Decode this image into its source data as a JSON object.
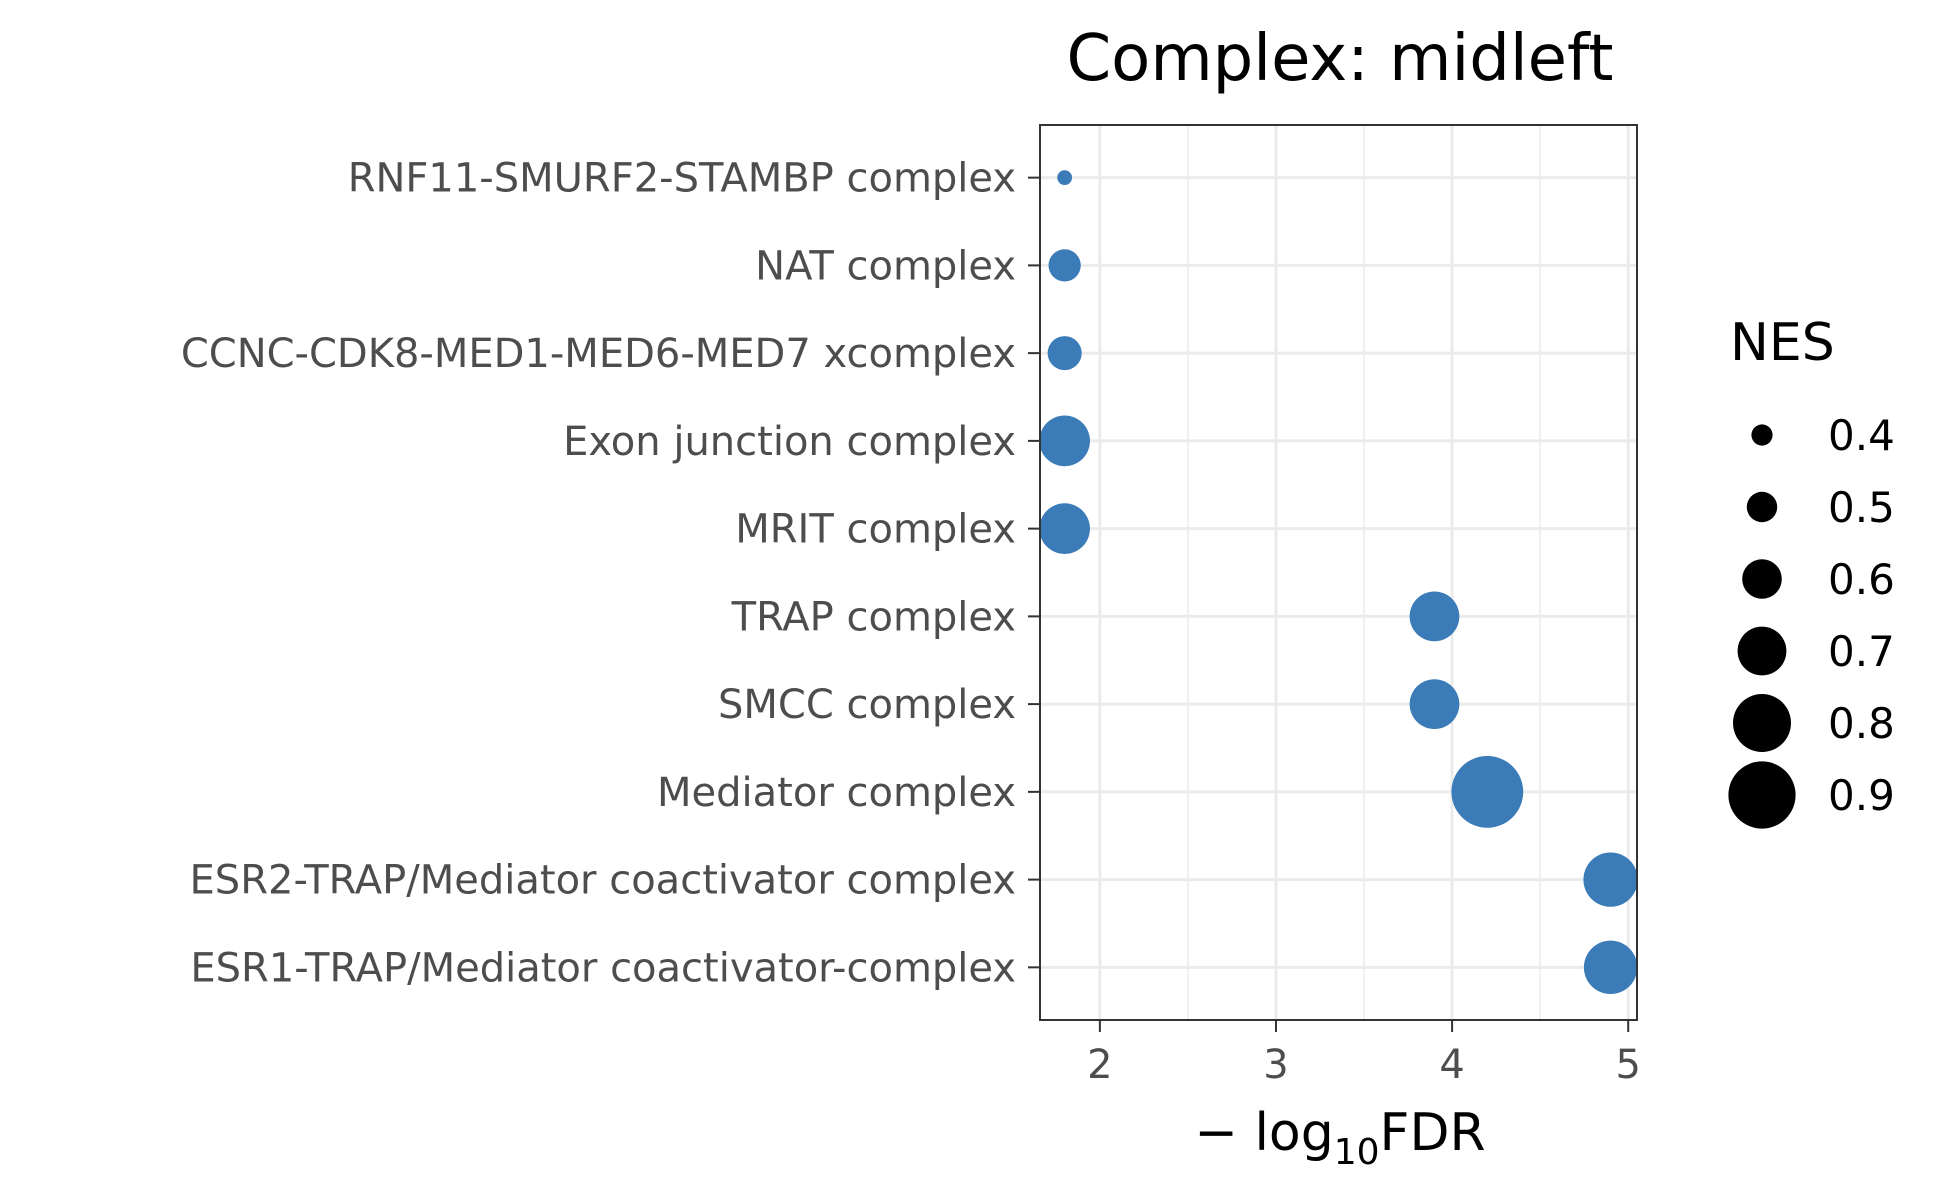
{
  "chart_data": {
    "type": "scatter",
    "title": "Complex: midleft",
    "xlabel_prefix": "− log",
    "xlabel_sub": "10",
    "xlabel_suffix": "FDR",
    "ylabel": "",
    "xlim": [
      1.66,
      5.05
    ],
    "xticks": [
      "2",
      "3",
      "4",
      "5"
    ],
    "grid": true,
    "point_color": "#3a7bb8",
    "categories": [
      "RNF11-SMURF2-STAMBP complex",
      "NAT complex",
      "CCNC-CDK8-MED1-MED6-MED7 xcomplex",
      "Exon junction complex",
      "MRIT complex",
      "TRAP complex",
      "SMCC complex",
      "Mediator complex",
      "ESR2-TRAP/Mediator coactivator complex",
      "ESR1-TRAP/Mediator coactivator-complex"
    ],
    "points": [
      {
        "x": 1.8,
        "nes": 0.33
      },
      {
        "x": 1.8,
        "nes": 0.52
      },
      {
        "x": 1.8,
        "nes": 0.54
      },
      {
        "x": 1.8,
        "nes": 0.72
      },
      {
        "x": 1.8,
        "nes": 0.72
      },
      {
        "x": 3.9,
        "nes": 0.71
      },
      {
        "x": 3.9,
        "nes": 0.71
      },
      {
        "x": 4.2,
        "nes": 0.95
      },
      {
        "x": 4.9,
        "nes": 0.76
      },
      {
        "x": 4.9,
        "nes": 0.75
      }
    ],
    "legend": {
      "title": "NES",
      "position": "right",
      "entries": [
        {
          "label": "0.4",
          "value": 0.4
        },
        {
          "label": "0.5",
          "value": 0.5
        },
        {
          "label": "0.6",
          "value": 0.6
        },
        {
          "label": "0.7",
          "value": 0.7
        },
        {
          "label": "0.8",
          "value": 0.8
        },
        {
          "label": "0.9",
          "value": 0.9
        }
      ]
    }
  }
}
